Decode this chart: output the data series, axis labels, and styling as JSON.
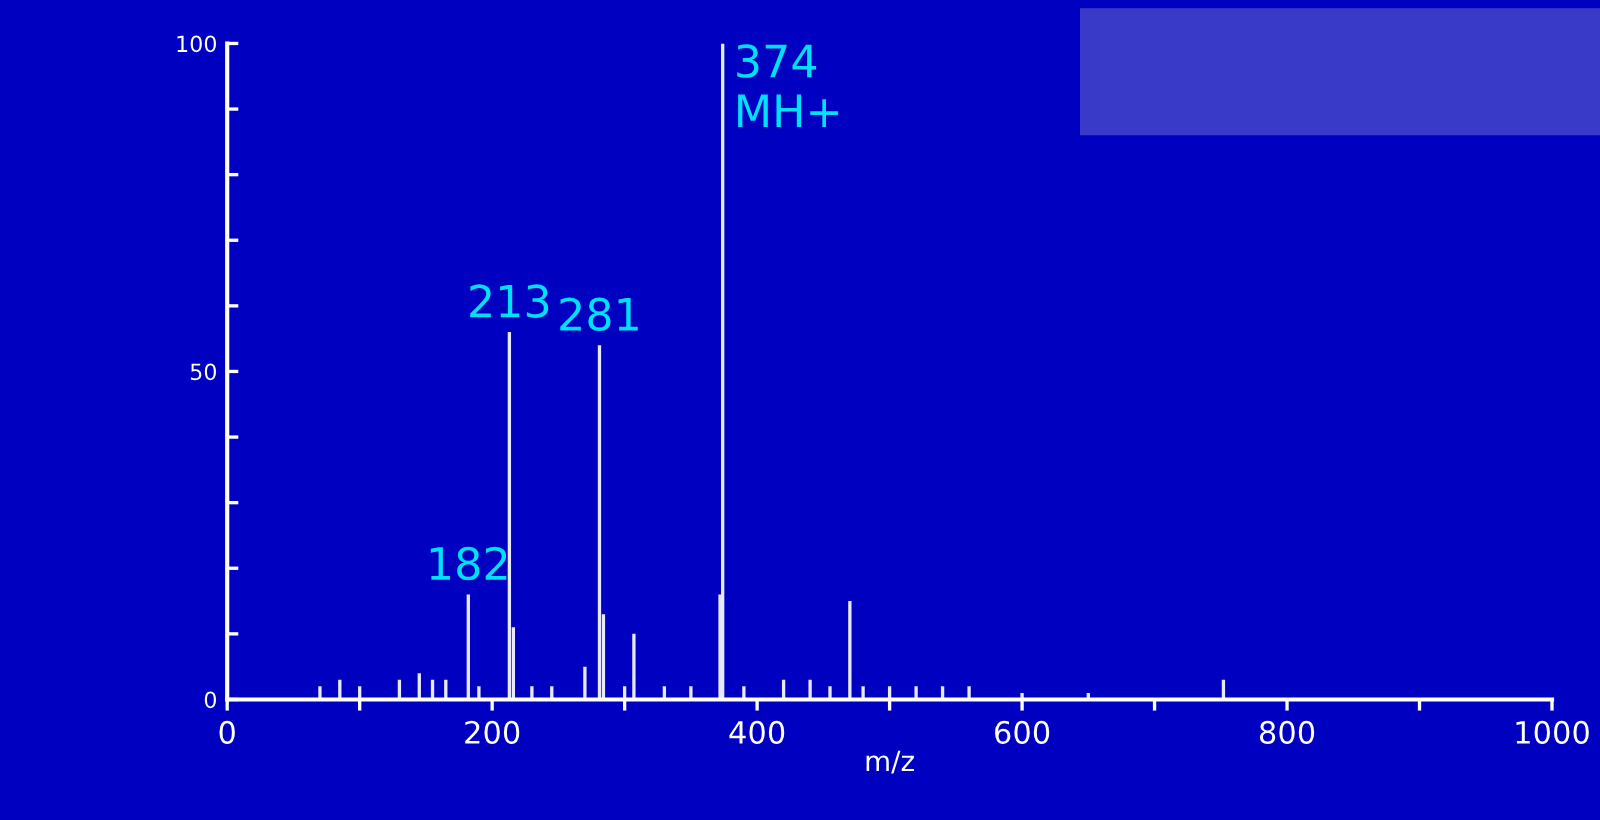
{
  "chart_data": {
    "type": "bar",
    "xlabel": "m/z",
    "x": [
      70,
      85,
      100,
      130,
      145,
      155,
      165,
      182,
      190,
      213,
      216,
      230,
      245,
      270,
      281,
      284,
      300,
      307,
      330,
      350,
      372,
      374,
      390,
      420,
      440,
      455,
      470,
      480,
      500,
      520,
      540,
      560,
      600,
      650,
      752
    ],
    "values": [
      2,
      3,
      2,
      3,
      4,
      3,
      3,
      16,
      2,
      56,
      11,
      2,
      2,
      5,
      54,
      13,
      2,
      10,
      2,
      2,
      16,
      100,
      2,
      3,
      3,
      2,
      15,
      2,
      2,
      2,
      2,
      2,
      1,
      1,
      3
    ],
    "color": "#e8e8ff",
    "xlim": [
      0,
      1000
    ],
    "xticks": [
      0,
      {
        "value": 100,
        "label": null
      },
      200,
      {
        "value": 300,
        "label": null
      },
      400,
      {
        "value": 500,
        "label": null
      },
      600,
      {
        "value": 700,
        "label": null
      },
      800,
      {
        "value": 900,
        "label": null
      },
      1000
    ],
    "ylim": [
      0,
      100
    ],
    "yticks": [
      0,
      {
        "value": 10,
        "label": null
      },
      {
        "value": 20,
        "label": null
      },
      {
        "value": 30,
        "label": null
      },
      {
        "value": 40,
        "label": null
      },
      50,
      {
        "value": 60,
        "label": null
      },
      {
        "value": 70,
        "label": null
      },
      {
        "value": 80,
        "label": null
      },
      {
        "value": 90,
        "label": null
      },
      100
    ],
    "annotations": [
      {
        "text": "182",
        "x": 182,
        "y": 16
      },
      {
        "text": "213",
        "x": 213,
        "y": 56
      },
      {
        "text": "281",
        "x": 281,
        "y": 54
      },
      {
        "text": "374\nMH+",
        "x": 374,
        "y": 100
      }
    ],
    "grid": false
  }
}
